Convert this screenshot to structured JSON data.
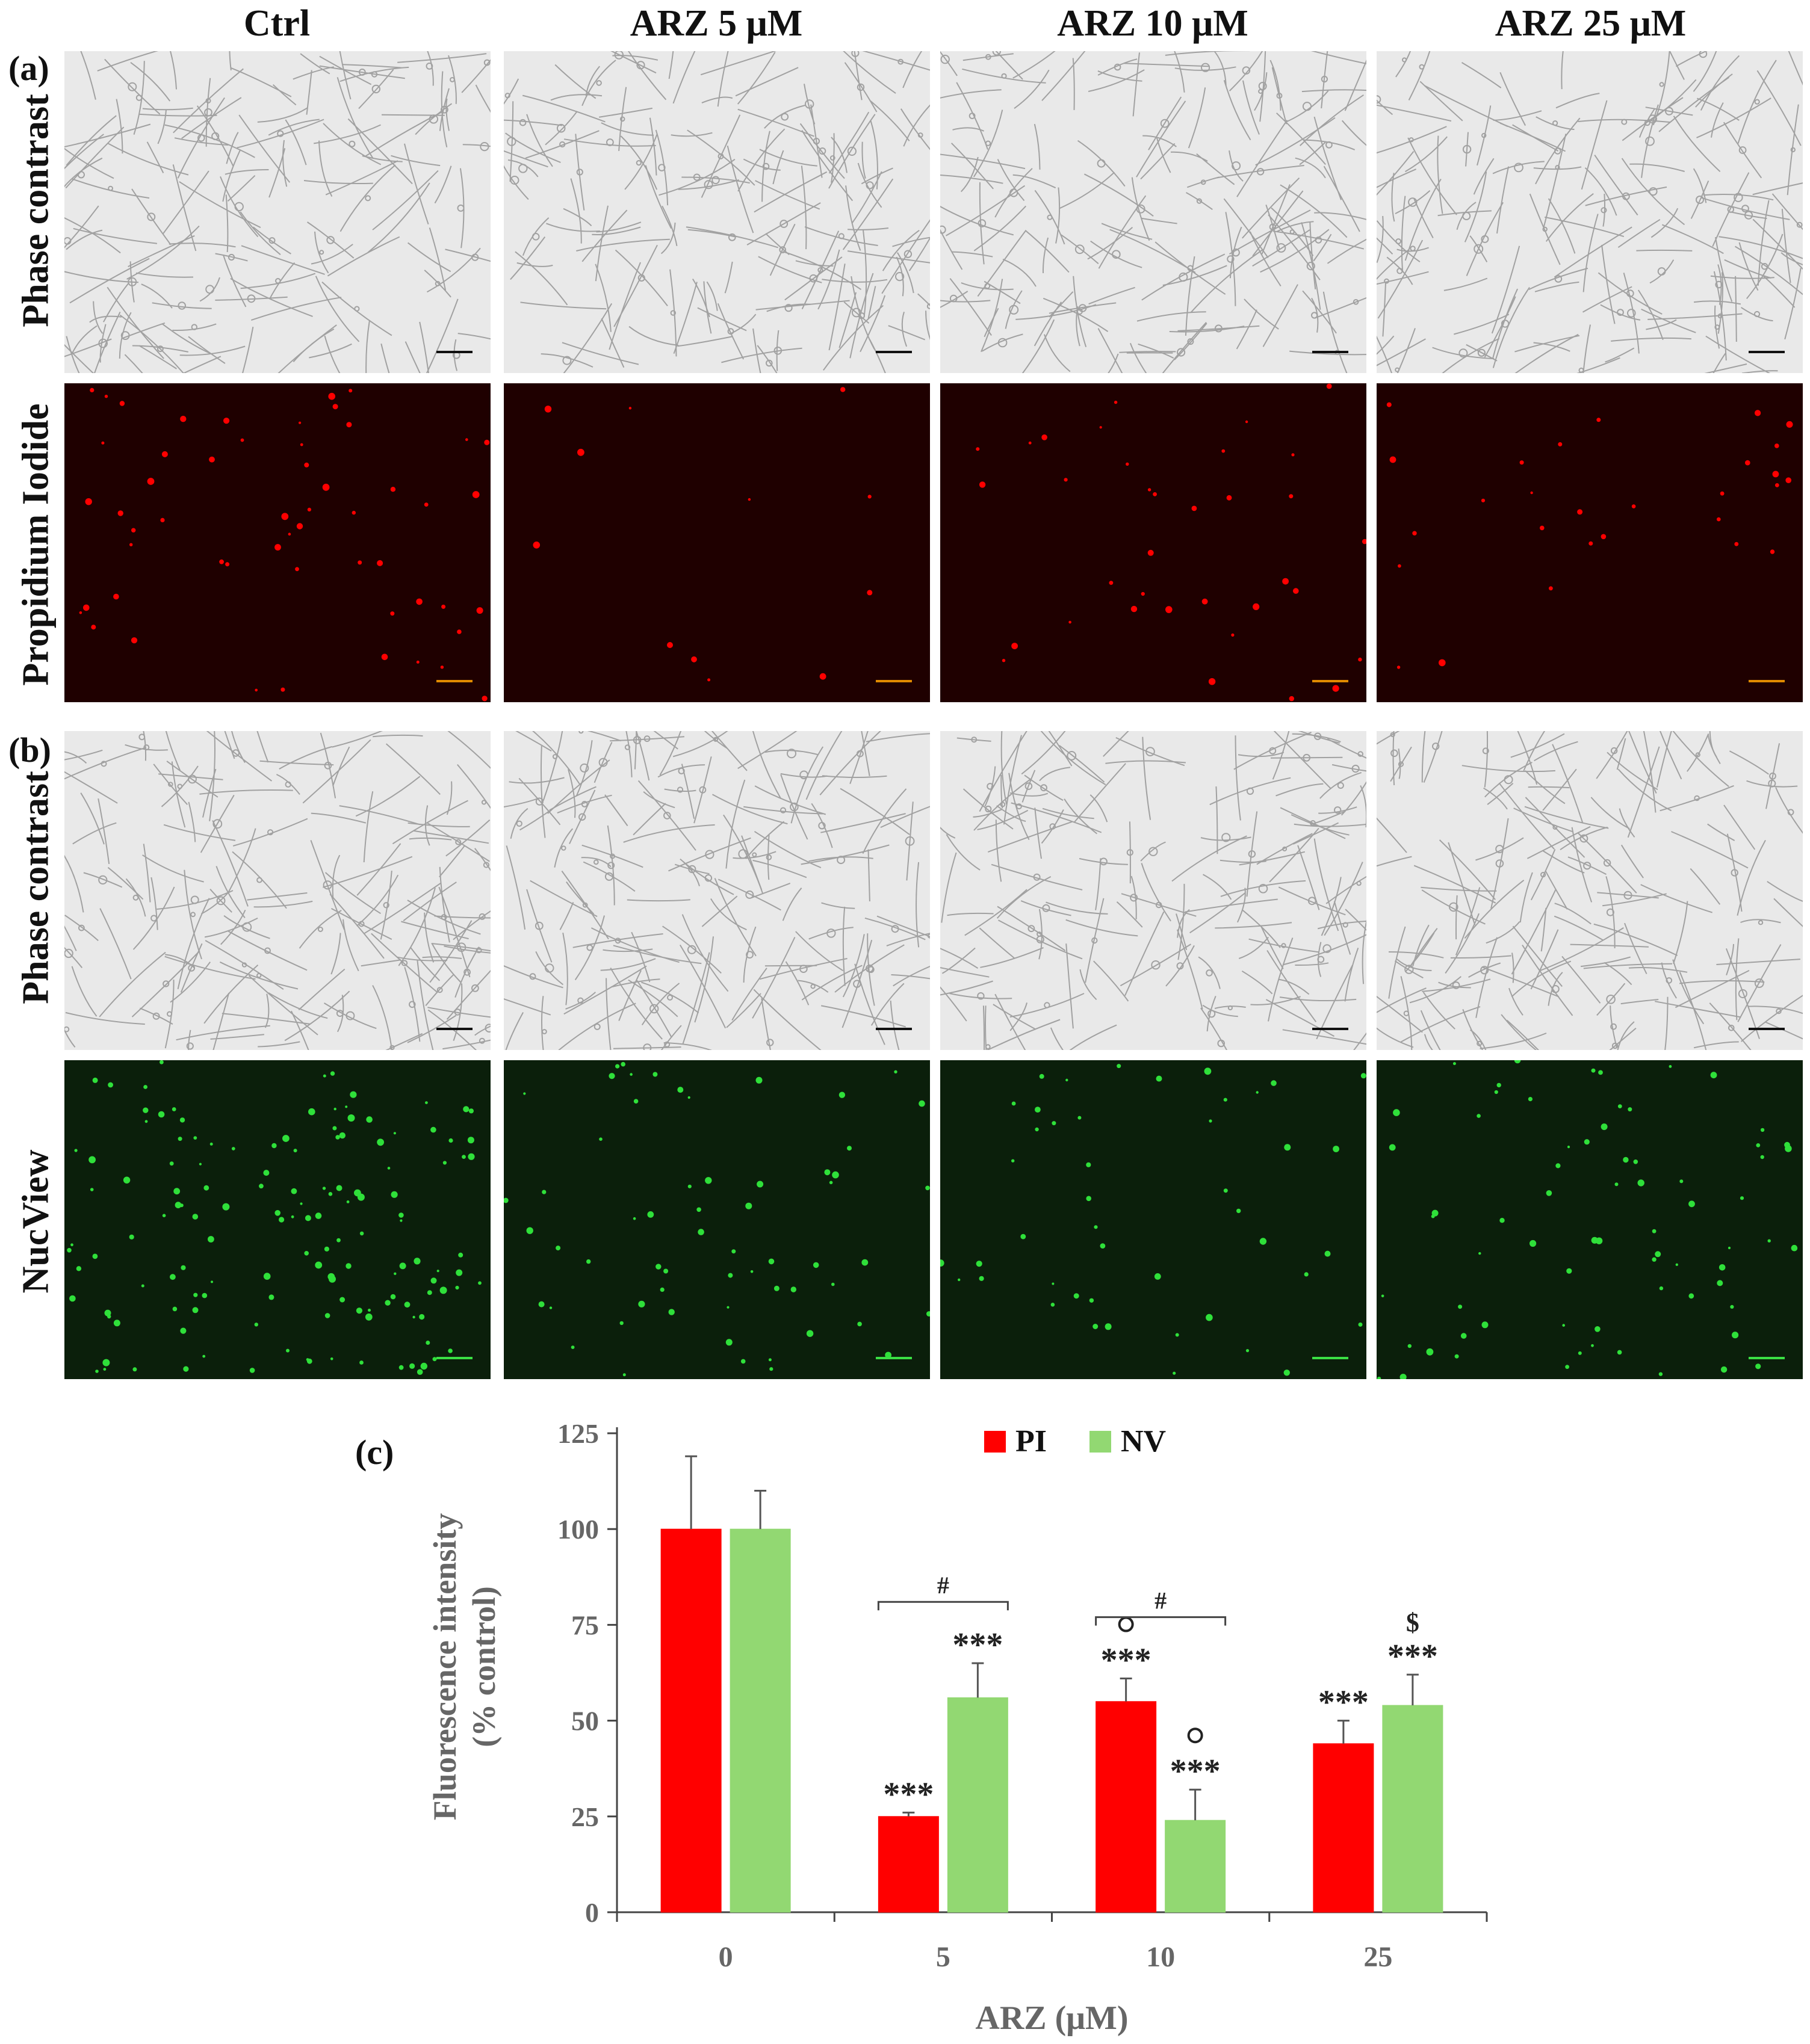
{
  "columns": [
    "Ctrl",
    "ARZ 5 μM",
    "ARZ 10 μM",
    "ARZ 25 μM"
  ],
  "panel_a": {
    "letter": "(a)",
    "row_labels": [
      "Phase contrast",
      "Propidium Iodide"
    ]
  },
  "panel_b": {
    "letter": "(b)",
    "row_labels": [
      "Phase contrast",
      "NucView"
    ]
  },
  "panel_c": {
    "letter": "(c)"
  },
  "colors": {
    "pi": "#ff0000",
    "nv": "#92d872",
    "pi_background": "#1f0000",
    "nv_background": "#0b1f0b",
    "phase_background": "#e9e9e9"
  },
  "chart_data": {
    "type": "bar",
    "categories": [
      "0",
      "5",
      "10",
      "25"
    ],
    "series": [
      {
        "name": "PI",
        "values": [
          100,
          25,
          55,
          44
        ],
        "errors": [
          19,
          1,
          6,
          6
        ],
        "annotations": [
          "",
          "***",
          "o\n***",
          "***"
        ]
      },
      {
        "name": "NV",
        "values": [
          100,
          56,
          24,
          54
        ],
        "errors": [
          10,
          9,
          8,
          8
        ],
        "annotations": [
          "",
          "***",
          "o\n***",
          "$\n***"
        ]
      }
    ],
    "brackets": [
      {
        "category": "5",
        "label": "#"
      },
      {
        "category": "10",
        "label": "#"
      }
    ],
    "xlabel": "ARZ (μM)",
    "ylabel": [
      "Fluorescence intensity",
      "(% control)"
    ],
    "yticks": [
      0,
      25,
      50,
      75,
      100,
      125
    ],
    "ylim": [
      0,
      125
    ],
    "legend_position": "top-center",
    "grid": false
  }
}
